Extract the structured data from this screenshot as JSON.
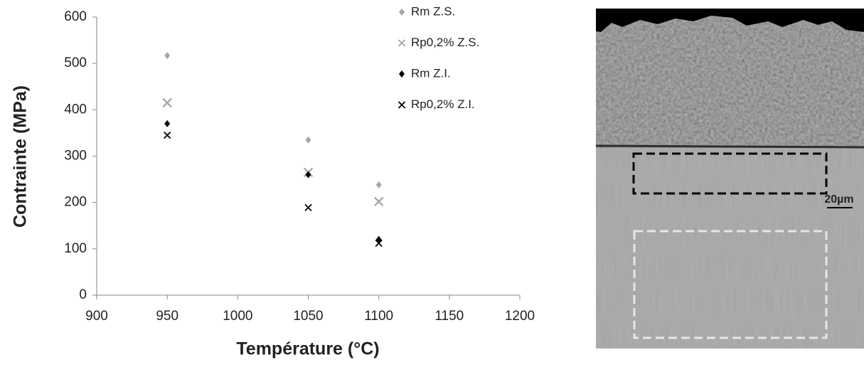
{
  "chart_data": {
    "type": "scatter",
    "xlabel": "Température (°C)",
    "ylabel": "Contrainte (MPa)",
    "xlim": [
      900,
      1200
    ],
    "xticks": [
      900,
      950,
      1000,
      1050,
      1100,
      1150,
      1200
    ],
    "ylim": [
      0,
      600
    ],
    "yticks": [
      0,
      100,
      200,
      300,
      400,
      500,
      600
    ],
    "grid": false,
    "legend": "top-right",
    "series": [
      {
        "name": "Rm Z.S.",
        "color": "#a6a6a6",
        "marker": "diamond",
        "x": [
          950,
          1050,
          1100
        ],
        "values": [
          517,
          335,
          238
        ]
      },
      {
        "name": "Rp0,2% Z.S.",
        "color": "#a6a6a6",
        "marker": "x",
        "x": [
          950,
          1050,
          1100
        ],
        "values": [
          415,
          265,
          202
        ]
      },
      {
        "name": "Rm Z.I.",
        "color": "#000000",
        "marker": "diamond",
        "x": [
          950,
          1050,
          1100
        ],
        "values": [
          370,
          260,
          120
        ]
      },
      {
        "name": "Rp0,2% Z.I.",
        "color": "#000000",
        "marker": "x",
        "x": [
          950,
          1050,
          1100
        ],
        "values": [
          345,
          189,
          112
        ]
      }
    ]
  },
  "image": {
    "scale_label": "20µm"
  }
}
